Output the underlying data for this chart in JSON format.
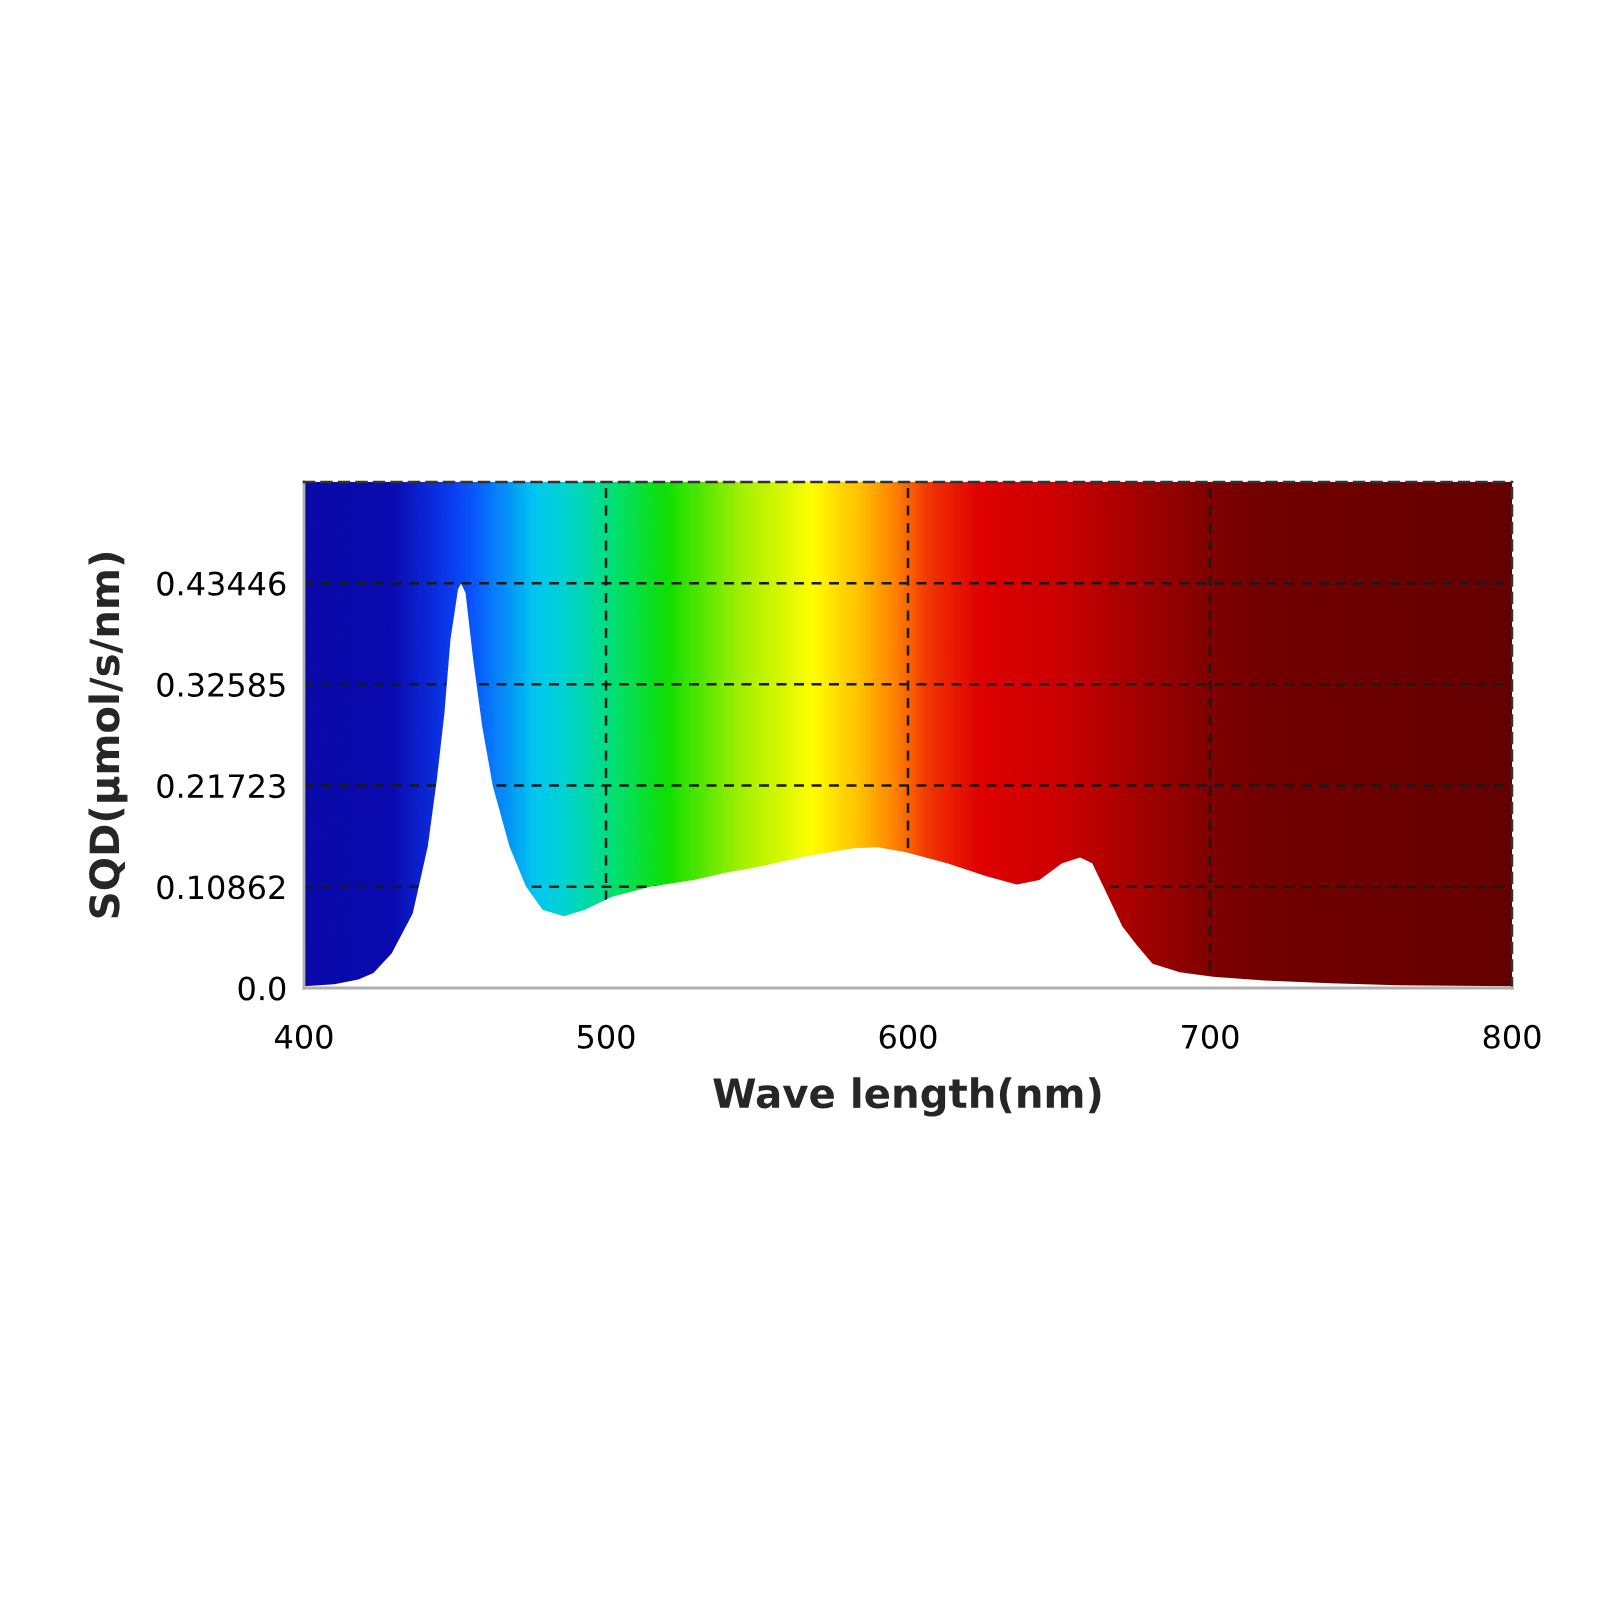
{
  "chart_data": {
    "type": "area",
    "xlabel": "Wave length(nm)",
    "ylabel": "SQD(μmol/s/nm)",
    "xlim": [
      400,
      800
    ],
    "xticks": [
      400,
      500,
      600,
      700,
      800
    ],
    "ylim": [
      0,
      0.5431
    ],
    "yticks": [
      {
        "value": 0,
        "label": "0.0"
      },
      0.10862,
      0.21723,
      0.32585,
      0.43446
    ],
    "grid": true,
    "series": [
      {
        "color": "#ffffff",
        "x": [
          400,
          410,
          418,
          423,
          429,
          436,
          441,
          444,
          446.5,
          448.5,
          451,
          452,
          453.5,
          456,
          459,
          462.5,
          468,
          473.5,
          479,
          486,
          493,
          502,
          515,
          529,
          540,
          549,
          566,
          582,
          590,
          599,
          613,
          626,
          636,
          643.5,
          651,
          657,
          661,
          666,
          671,
          676,
          681,
          690,
          701,
          718,
          740,
          762,
          800
        ],
        "values": [
          0.002,
          0.004,
          0.009,
          0.016,
          0.037,
          0.08,
          0.152,
          0.224,
          0.295,
          0.374,
          0.428,
          0.434,
          0.424,
          0.353,
          0.281,
          0.217,
          0.152,
          0.109,
          0.084,
          0.077,
          0.084,
          0.098,
          0.109,
          0.116,
          0.124,
          0.129,
          0.141,
          0.15,
          0.151,
          0.146,
          0.134,
          0.12,
          0.111,
          0.116,
          0.134,
          0.14,
          0.134,
          0.1,
          0.066,
          0.045,
          0.026,
          0.017,
          0.012,
          0.008,
          0.005,
          0.003,
          0.002
        ]
      }
    ]
  }
}
